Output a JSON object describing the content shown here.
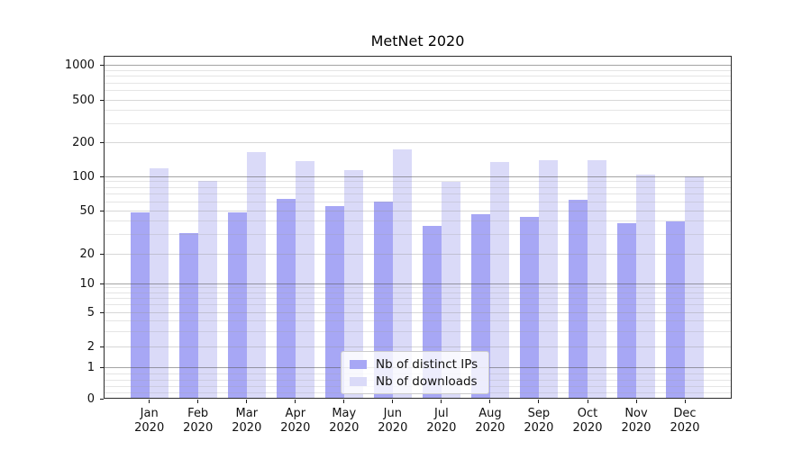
{
  "chart_data": {
    "type": "bar",
    "title": "MetNet 2020",
    "y_scale": "symlog (logarithmic above 1, linear 0-1)",
    "categories": [
      "Jan",
      "Feb",
      "Mar",
      "Apr",
      "May",
      "Jun",
      "Jul",
      "Aug",
      "Sep",
      "Oct",
      "Nov",
      "Dec"
    ],
    "x_year_label": "2020",
    "series": [
      {
        "name": "Nb of distinct IPs",
        "color": "#a7a7f5",
        "values": [
          48,
          31,
          48,
          64,
          55,
          60,
          36,
          46,
          44,
          62,
          38,
          40
        ]
      },
      {
        "name": "Nb of downloads",
        "color": "#dadaf8",
        "values": [
          117,
          92,
          164,
          137,
          114,
          172,
          90,
          134,
          140,
          139,
          103,
          100
        ]
      }
    ],
    "y_ticks": [
      0,
      1,
      2,
      5,
      10,
      20,
      50,
      100,
      200,
      500,
      1000
    ],
    "y_minor_ticks": [
      0.2,
      0.4,
      0.6,
      0.8,
      3,
      4,
      6,
      7,
      8,
      9,
      30,
      40,
      60,
      70,
      80,
      90,
      300,
      400,
      600,
      700,
      800,
      900
    ],
    "ylim": [
      0,
      1200
    ],
    "xlabel": "",
    "ylabel": "",
    "legend_position": "lower center",
    "grid": true
  }
}
